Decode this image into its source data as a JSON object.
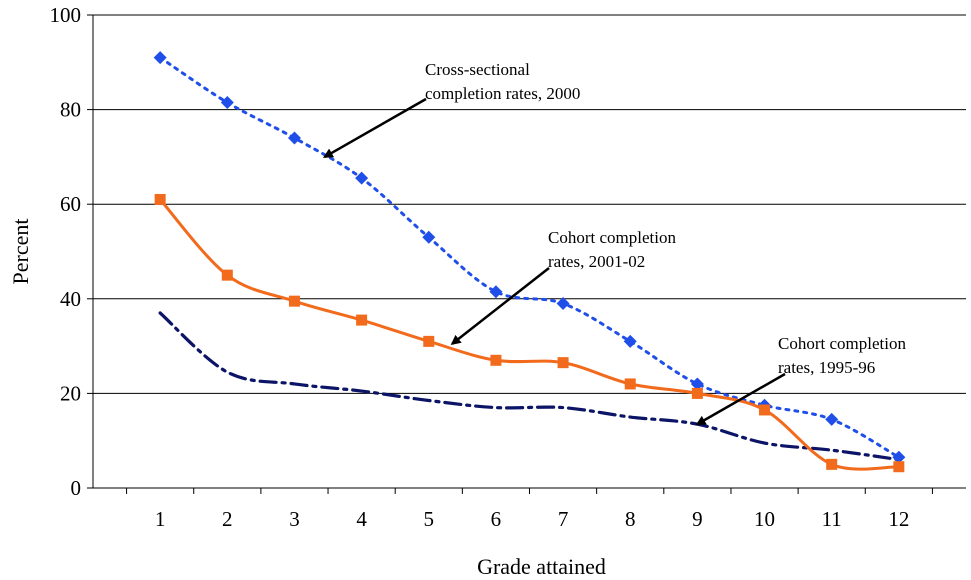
{
  "chart_data": {
    "type": "line",
    "title": "",
    "xlabel": "Grade attained",
    "ylabel": "Percent",
    "x": [
      1,
      2,
      3,
      4,
      5,
      6,
      7,
      8,
      9,
      10,
      11,
      12
    ],
    "ylim": [
      0,
      100
    ],
    "yticks": [
      0,
      20,
      40,
      60,
      80,
      100
    ],
    "grid": "horizontal",
    "legend": "none",
    "series": [
      {
        "label": "Cross-sectional completion rates, 2000",
        "values": [
          91,
          81.5,
          74,
          65.5,
          53,
          41.5,
          39,
          31,
          22,
          17.5,
          14.5,
          6.5
        ],
        "color": "#1f4fe8",
        "style": "dotted",
        "marker": "diamond"
      },
      {
        "label": "Cohort completion rates, 2001-02",
        "values": [
          61,
          45,
          39.5,
          35.5,
          31,
          27,
          26.5,
          22,
          20,
          16.5,
          5,
          4.5
        ],
        "color": "#f26a1b",
        "style": "solid",
        "marker": "square"
      },
      {
        "label": "Cohort completion rates, 1995-96",
        "values": [
          37,
          24.5,
          22,
          20.5,
          18.5,
          17,
          17,
          15,
          13.5,
          9.5,
          8,
          6
        ],
        "color": "#0b1466",
        "style": "dashdot",
        "marker": "none"
      }
    ],
    "annotations": [
      {
        "lines": [
          "Cross-sectional",
          "completion rates, 2000"
        ],
        "points_to": {
          "x": 3.45,
          "y": 70
        }
      },
      {
        "lines": [
          "Cohort completion",
          "rates, 2001-02"
        ],
        "points_to": {
          "x": 5.35,
          "y": 30.5
        }
      },
      {
        "lines": [
          "Cohort completion",
          "rates, 1995-96"
        ],
        "points_to": {
          "x": 9,
          "y": 13.5
        }
      }
    ]
  }
}
